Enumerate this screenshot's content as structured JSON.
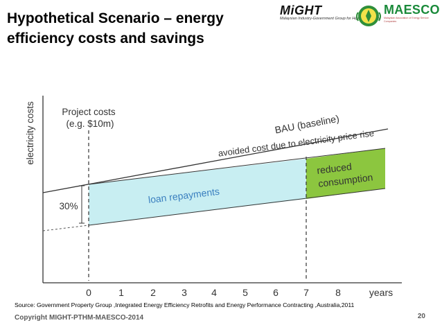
{
  "header": {
    "title": "Hypothetical Scenario – energy efficiency costs and savings"
  },
  "logos": {
    "might_name": "MiGHT",
    "might_tagline": "Malaysian Industry-Government Group for High Technology",
    "maesco_name": "MAESCO",
    "maesco_tagline": "Malaysian Association of Energy Service Companies"
  },
  "diagram": {
    "y_axis_label": "electricity costs",
    "x_axis_label": "years",
    "x_ticks": [
      "0",
      "1",
      "2",
      "3",
      "4",
      "5",
      "6",
      "7",
      "8"
    ],
    "project_costs_label_1": "Project costs",
    "project_costs_label_2": "(e.g. $10m)",
    "bau_label": "BAU (baseline)",
    "avoided_cost_label": "avoided cost due to electricity price rise",
    "loan_label": "loan repayments",
    "reduced_label_1": "reduced",
    "reduced_label_2": "consumption",
    "percent_label": "30%",
    "colors": {
      "loan_fill": "#c8eef2",
      "reduced_fill": "#8cc63f",
      "lines": "#333333",
      "axis_text": "#333333"
    }
  },
  "footer": {
    "source": "Source: Government Property Group ,Integrated Energy Efficiency Retrofits and Energy Performance Contracting ,Australia,2011",
    "copyright": "Copyright MIGHT-PTHM-MAESCO-2014",
    "page_number": "20"
  }
}
